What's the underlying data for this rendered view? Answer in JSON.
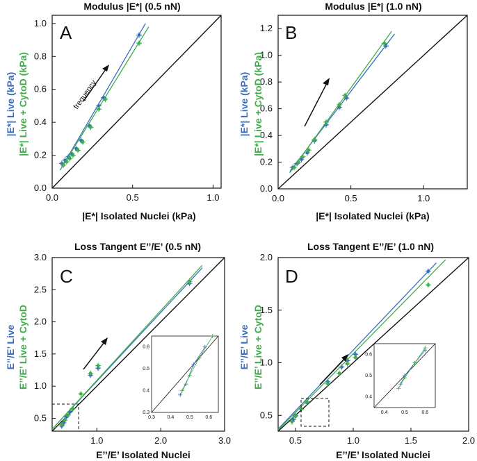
{
  "colors": {
    "live": "#3a6fc0",
    "cytod": "#3fae49",
    "identity": "#111111"
  },
  "chart_data": [
    {
      "type": "scatter",
      "panel": "A",
      "title": "Modulus |E*| (0.5 nN)",
      "xlabel": "|E*| Isolated Nuclei (kPa)",
      "ylabel_blue": "|E*| Live (kPa)",
      "ylabel_green": "|E*| Live + CytoD (kPa)",
      "xlim": [
        0,
        1.05
      ],
      "ylim": [
        0,
        1.05
      ],
      "xticks": [
        "0.0",
        "0.5",
        "1.0"
      ],
      "yticks": [
        "0.0",
        "0.2",
        "0.4",
        "0.6",
        "0.8",
        "1.0"
      ],
      "xtick_values": [
        0,
        0.5,
        1.0
      ],
      "ytick_values": [
        0,
        0.2,
        0.4,
        0.6,
        0.8,
        1.0
      ],
      "annotation": "frequency",
      "series": [
        {
          "name": "Live",
          "color": "live",
          "x": [
            0.06,
            0.08,
            0.1,
            0.12,
            0.15,
            0.18,
            0.23,
            0.29,
            0.32,
            0.54
          ],
          "y": [
            0.15,
            0.17,
            0.19,
            0.21,
            0.24,
            0.29,
            0.38,
            0.5,
            0.55,
            0.93
          ],
          "fit": [
            [
              0.05,
              0.11
            ],
            [
              0.58,
              1.0
            ]
          ]
        },
        {
          "name": "Live + CytoD",
          "color": "cytod",
          "x": [
            0.07,
            0.09,
            0.11,
            0.13,
            0.16,
            0.19,
            0.24,
            0.29,
            0.33,
            0.54
          ],
          "y": [
            0.14,
            0.16,
            0.18,
            0.2,
            0.23,
            0.28,
            0.37,
            0.48,
            0.54,
            0.88
          ],
          "fit": [
            [
              0.05,
              0.11
            ],
            [
              0.6,
              0.98
            ]
          ]
        }
      ]
    },
    {
      "type": "scatter",
      "panel": "B",
      "title": "Modulus |E*| (1.0 nN)",
      "xlabel": "|E*| Isolated Nuclei (kPa)",
      "ylabel_blue": "|E*| Live (kPa)",
      "ylabel_green": "|E*| Live + CytoD (kPa)",
      "xlim": [
        0,
        1.3
      ],
      "ylim": [
        0,
        1.3
      ],
      "xticks": [
        "0.0",
        "0.5",
        "1.0"
      ],
      "yticks": [
        "0.0",
        "0.2",
        "0.4",
        "0.6",
        "0.8",
        "1.0",
        "1.2"
      ],
      "xtick_values": [
        0,
        0.5,
        1.0
      ],
      "ytick_values": [
        0,
        0.2,
        0.4,
        0.6,
        0.8,
        1.0,
        1.2
      ],
      "series": [
        {
          "name": "Live",
          "color": "live",
          "x": [
            0.1,
            0.13,
            0.16,
            0.2,
            0.25,
            0.33,
            0.42,
            0.47,
            0.74
          ],
          "y": [
            0.16,
            0.19,
            0.22,
            0.27,
            0.36,
            0.48,
            0.61,
            0.68,
            1.07
          ],
          "fit": [
            [
              0.08,
              0.13
            ],
            [
              0.8,
              1.16
            ]
          ]
        },
        {
          "name": "Live + CytoD",
          "color": "cytod",
          "x": [
            0.11,
            0.14,
            0.17,
            0.21,
            0.25,
            0.33,
            0.42,
            0.46,
            0.73
          ],
          "y": [
            0.16,
            0.2,
            0.24,
            0.29,
            0.37,
            0.5,
            0.63,
            0.7,
            1.09
          ],
          "fit": [
            [
              0.08,
              0.12
            ],
            [
              0.78,
              1.18
            ]
          ]
        }
      ]
    },
    {
      "type": "scatter",
      "panel": "C",
      "title": "Loss Tangent E’’/E’ (0.5 nN)",
      "xlabel": "E’’/E’ Isolated Nuclei",
      "ylabel_blue": "E’’/E’ Live",
      "ylabel_green": "E’’/E’ Live + CytoD",
      "xlim": [
        0.3,
        3.0
      ],
      "ylim": [
        0.3,
        3.0
      ],
      "xticks": [
        "1.0",
        "2.0",
        "3.0"
      ],
      "yticks": [
        "0.5",
        "1.0",
        "1.5",
        "2.0",
        "2.5",
        "3.0"
      ],
      "xtick_values": [
        1.0,
        2.0,
        3.0
      ],
      "ytick_values": [
        0.5,
        1.0,
        1.5,
        2.0,
        2.5,
        3.0
      ],
      "inset": {
        "xlim": [
          0.3,
          0.65
        ],
        "ylim": [
          0.3,
          0.65
        ],
        "xticks": [
          "0.3",
          "0.4",
          "0.5",
          "0.6"
        ],
        "yticks": [
          "0.3",
          "0.4",
          "0.5",
          "0.6"
        ],
        "xtick_values": [
          0.3,
          0.4,
          0.5,
          0.6
        ],
        "ytick_values": [
          0.3,
          0.4,
          0.5,
          0.6
        ]
      },
      "series": [
        {
          "name": "Live",
          "color": "live",
          "x": [
            0.45,
            0.48,
            0.52,
            0.58,
            0.9,
            1.02,
            2.45
          ],
          "y": [
            0.38,
            0.43,
            0.52,
            0.6,
            1.17,
            1.28,
            2.6
          ],
          "fit": [
            [
              0.3,
              0.33
            ],
            [
              2.65,
              2.84
            ]
          ]
        },
        {
          "name": "Live + CytoD",
          "color": "cytod",
          "x": [
            0.46,
            0.5,
            0.55,
            0.62,
            0.75,
            0.9,
            1.02,
            2.45
          ],
          "y": [
            0.4,
            0.47,
            0.55,
            0.65,
            0.88,
            1.2,
            1.32,
            2.63
          ],
          "fit": [
            [
              0.3,
              0.33
            ],
            [
              2.65,
              2.88
            ]
          ]
        }
      ]
    },
    {
      "type": "scatter",
      "panel": "D",
      "title": "Loss Tangent E’’/E’ (1.0 nN)",
      "xlabel": "E’’/E’ Isolated Nuclei",
      "ylabel_blue": "E’’/E’ Live",
      "ylabel_green": "E’’/E’ Live + CytoD",
      "xlim": [
        0.35,
        2.0
      ],
      "ylim": [
        0.35,
        2.0
      ],
      "xticks": [
        "0.5",
        "1.0",
        "1.5",
        "2.0"
      ],
      "yticks": [
        "0.5",
        "1.0",
        "1.5",
        "2.0"
      ],
      "xtick_values": [
        0.5,
        1.0,
        1.5,
        2.0
      ],
      "ytick_values": [
        0.5,
        1.0,
        1.5,
        2.0
      ],
      "inset": {
        "xlim": [
          0.35,
          0.65
        ],
        "ylim": [
          0.35,
          0.65
        ],
        "xticks": [
          "0.4",
          "0.5",
          "0.6"
        ],
        "yticks": [
          "0.4",
          "0.5",
          "0.6"
        ],
        "xtick_values": [
          0.4,
          0.5,
          0.6
        ],
        "ytick_values": [
          0.4,
          0.5,
          0.6
        ]
      },
      "series": [
        {
          "name": "Live",
          "color": "live",
          "x": [
            0.48,
            0.5,
            0.55,
            0.6,
            0.78,
            0.9,
            0.95,
            1.02,
            1.65
          ],
          "y": [
            0.46,
            0.5,
            0.56,
            0.62,
            0.82,
            0.96,
            1.02,
            1.08,
            1.87
          ],
          "fit": [
            [
              0.35,
              0.37
            ],
            [
              1.72,
              1.95
            ]
          ]
        },
        {
          "name": "Live + CytoD",
          "color": "cytod",
          "x": [
            0.47,
            0.5,
            0.55,
            0.6,
            0.78,
            0.88,
            0.95,
            1.02,
            1.65
          ],
          "y": [
            0.44,
            0.49,
            0.56,
            0.63,
            0.8,
            0.9,
            0.99,
            1.05,
            1.74
          ],
          "fit": [
            [
              0.35,
              0.36
            ],
            [
              1.8,
              1.98
            ]
          ]
        }
      ]
    }
  ]
}
